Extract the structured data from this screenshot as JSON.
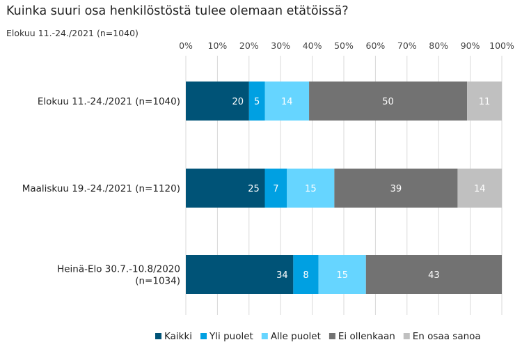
{
  "chart_data": {
    "type": "bar",
    "orientation": "horizontal-stacked-100",
    "title": "Kuinka suuri osa henkilöstöstä tulee olemaan etätöissä?",
    "subtitle": "Elokuu 11.-24./2021 (n=1040)",
    "xlim": [
      0,
      100
    ],
    "ticks": [
      "0%",
      "10%",
      "20%",
      "30%",
      "40%",
      "50%",
      "60%",
      "70%",
      "80%",
      "90%",
      "100%"
    ],
    "tick_values": [
      0,
      10,
      20,
      30,
      40,
      50,
      60,
      70,
      80,
      90,
      100
    ],
    "grid": true,
    "legend_position": "bottom",
    "categories": [
      [
        "Elokuu 11.-24./2021 (n=1040)"
      ],
      [
        "Maaliskuu 19.-24./2021 (n=1120)"
      ],
      [
        "Heinä-Elo 30.7.-10.8/2020",
        "(n=1034)"
      ]
    ],
    "series": [
      {
        "name": "Kaikki",
        "color": "#005377",
        "values": [
          20,
          25,
          34
        ]
      },
      {
        "name": "Yli puolet",
        "color": "#00a0e2",
        "values": [
          5,
          7,
          8
        ]
      },
      {
        "name": "Alle puolet",
        "color": "#66d5ff",
        "values": [
          14,
          15,
          15
        ]
      },
      {
        "name": "Ei ollenkaan",
        "color": "#727272",
        "values": [
          50,
          39,
          43
        ]
      },
      {
        "name": "En osaa sanoa",
        "color": "#c0c0c0",
        "values": [
          11,
          14,
          null
        ]
      }
    ]
  }
}
